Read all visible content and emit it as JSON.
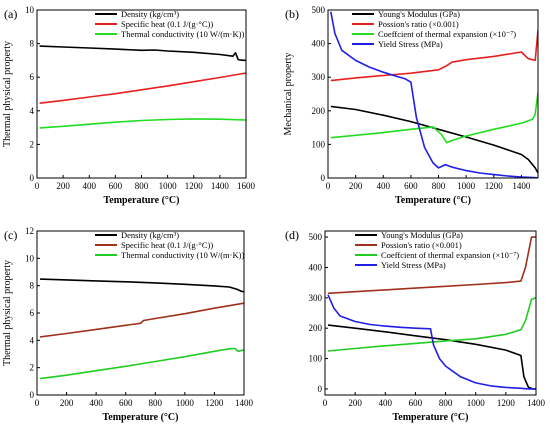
{
  "panels": [
    {
      "label": "(a)",
      "chart_data": {
        "type": "line",
        "xlabel": "Temperature (°C)",
        "ylabel": "Thermal physical property",
        "xlim": [
          0,
          1600
        ],
        "ylim": [
          0,
          10
        ],
        "xticks": [
          0,
          200,
          400,
          600,
          800,
          1000,
          1200,
          1400,
          1600
        ],
        "yticks": [
          0,
          2,
          4,
          6,
          8,
          10
        ],
        "legend_position": "top-right",
        "series": [
          {
            "name": "Density (kg/cm³)",
            "color": "#000000",
            "x": [
              20,
              200,
              400,
              600,
              800,
              900,
              1000,
              1200,
              1400,
              1500,
              1520,
              1540,
              1560,
              1600
            ],
            "y": [
              7.85,
              7.8,
              7.74,
              7.67,
              7.6,
              7.62,
              7.56,
              7.48,
              7.35,
              7.25,
              7.45,
              7.05,
              7.02,
              7.0
            ]
          },
          {
            "name": "Specific heat (0.1 J/(g·°C))",
            "color": "#e8201f",
            "x": [
              20,
              200,
              400,
              600,
              800,
              1000,
              1200,
              1400,
              1600
            ],
            "y": [
              4.45,
              4.62,
              4.82,
              5.02,
              5.25,
              5.48,
              5.73,
              5.98,
              6.25
            ]
          },
          {
            "name": "Thermal conductivity (10 W/(m·K))",
            "color": "#22dd22",
            "x": [
              20,
              200,
              400,
              600,
              800,
              1000,
              1200,
              1400,
              1600
            ],
            "y": [
              2.98,
              3.08,
              3.2,
              3.32,
              3.42,
              3.48,
              3.52,
              3.5,
              3.45
            ]
          }
        ]
      }
    },
    {
      "label": "(b)",
      "chart_data": {
        "type": "line",
        "xlabel": "Temperature (°C)",
        "ylabel": "Mechanical property",
        "xlim": [
          0,
          1520
        ],
        "ylim": [
          0,
          500
        ],
        "xticks": [
          0,
          200,
          400,
          600,
          800,
          1000,
          1200,
          1400
        ],
        "yticks": [
          0,
          100,
          200,
          300,
          400,
          500
        ],
        "legend_position": "top-right",
        "series": [
          {
            "name": "Young's Modulus (GPa)",
            "color": "#000000",
            "x": [
              20,
              200,
              400,
              600,
              800,
              1000,
              1200,
              1400,
              1450,
              1500,
              1520
            ],
            "y": [
              213,
              204,
              187,
              168,
              145,
              122,
              98,
              70,
              55,
              30,
              15
            ]
          },
          {
            "name": "Possion's ratio (×0.001)",
            "color": "#e8201f",
            "x": [
              20,
              200,
              400,
              600,
              800,
              850,
              900,
              1000,
              1200,
              1400,
              1450,
              1500,
              1520
            ],
            "y": [
              290,
              298,
              305,
              312,
              322,
              332,
              345,
              352,
              362,
              375,
              355,
              350,
              440
            ]
          },
          {
            "name": "Coeffcient of thermal expansion (×10⁻⁷)",
            "color": "#22dd22",
            "x": [
              20,
              200,
              400,
              600,
              760,
              820,
              860,
              900,
              1000,
              1200,
              1400,
              1480,
              1500,
              1520
            ],
            "y": [
              120,
              127,
              135,
              145,
              152,
              130,
              105,
              112,
              125,
              145,
              163,
              175,
              190,
              255
            ]
          },
          {
            "name": "Yield Stress (MPa)",
            "color": "#1f1fe8",
            "x": [
              20,
              50,
              100,
              200,
              300,
              400,
              500,
              560,
              600,
              640,
              700,
              760,
              800,
              850,
              900,
              1000,
              1100,
              1200,
              1300,
              1400,
              1450,
              1500,
              1520
            ],
            "y": [
              495,
              430,
              380,
              350,
              330,
              315,
              302,
              295,
              285,
              180,
              90,
              45,
              30,
              40,
              32,
              22,
              15,
              10,
              6,
              3,
              2,
              1,
              0
            ]
          }
        ]
      }
    },
    {
      "label": "(c)",
      "chart_data": {
        "type": "line",
        "xlabel": "Temperature (°C)",
        "ylabel": "Thermal physical property",
        "xlim": [
          0,
          1400
        ],
        "ylim": [
          0,
          12
        ],
        "xticks": [
          0,
          200,
          400,
          600,
          800,
          1000,
          1200,
          1400
        ],
        "yticks": [
          0,
          2,
          4,
          6,
          8,
          10,
          12
        ],
        "legend_position": "top-right",
        "series": [
          {
            "name": "Density (kg/cm³)",
            "color": "#000000",
            "x": [
              20,
              200,
              400,
              600,
              800,
              1000,
              1200,
              1300,
              1350,
              1380,
              1400
            ],
            "y": [
              8.48,
              8.42,
              8.35,
              8.28,
              8.2,
              8.1,
              7.98,
              7.9,
              7.75,
              7.6,
              7.55
            ]
          },
          {
            "name": "Specific heat (0.1 J/(g·°C))",
            "color": "#a0301c",
            "x": [
              20,
              200,
              400,
              600,
              700,
              720,
              800,
              1000,
              1200,
              1400
            ],
            "y": [
              4.25,
              4.5,
              4.8,
              5.1,
              5.25,
              5.45,
              5.6,
              5.95,
              6.35,
              6.72
            ]
          },
          {
            "name": "Thermal conductivity (10 W/(m·K))",
            "color": "#22cc22",
            "x": [
              20,
              200,
              400,
              600,
              800,
              1000,
              1200,
              1300,
              1340,
              1360,
              1400
            ],
            "y": [
              1.2,
              1.45,
              1.78,
              2.1,
              2.45,
              2.8,
              3.2,
              3.38,
              3.4,
              3.2,
              3.3
            ]
          }
        ]
      }
    },
    {
      "label": "(d)",
      "chart_data": {
        "type": "line",
        "xlabel": "Temperature (°C)",
        "ylabel": "",
        "xlim": [
          0,
          1400
        ],
        "ylim": [
          -20,
          520
        ],
        "xticks": [
          0,
          200,
          400,
          600,
          800,
          1000,
          1200,
          1400
        ],
        "yticks": [
          0,
          100,
          200,
          300,
          400,
          500
        ],
        "legend_position": "top-right",
        "series": [
          {
            "name": "Young's Modulus (GPa)",
            "color": "#000000",
            "x": [
              20,
              200,
              400,
              600,
              800,
              1000,
              1200,
              1300,
              1320,
              1350,
              1380,
              1400
            ],
            "y": [
              210,
              200,
              188,
              175,
              162,
              147,
              128,
              110,
              40,
              5,
              0,
              0
            ]
          },
          {
            "name": "Possion's ratio (×0.001)",
            "color": "#a0301c",
            "x": [
              20,
              200,
              400,
              600,
              800,
              1000,
              1200,
              1300,
              1330,
              1370,
              1390,
              1400
            ],
            "y": [
              315,
              320,
              326,
              332,
              338,
              344,
              350,
              355,
              400,
              500,
              500,
              500
            ]
          },
          {
            "name": "Coeffcient of thermal expansion (×10⁻⁷)",
            "color": "#22cc22",
            "x": [
              20,
              200,
              400,
              600,
              800,
              1000,
              1200,
              1300,
              1330,
              1370,
              1400
            ],
            "y": [
              125,
              133,
              142,
              150,
              158,
              165,
              180,
              195,
              225,
              295,
              300
            ]
          },
          {
            "name": "Yield Stress (MPa)",
            "color": "#1f1fe8",
            "x": [
              20,
              60,
              100,
              200,
              300,
              400,
              500,
              600,
              700,
              720,
              760,
              800,
              900,
              1000,
              1100,
              1200,
              1300,
              1350,
              1400
            ],
            "y": [
              310,
              265,
              240,
              222,
              212,
              207,
              203,
              200,
              198,
              145,
              100,
              75,
              40,
              20,
              10,
              5,
              2,
              0,
              0
            ]
          }
        ]
      }
    }
  ]
}
